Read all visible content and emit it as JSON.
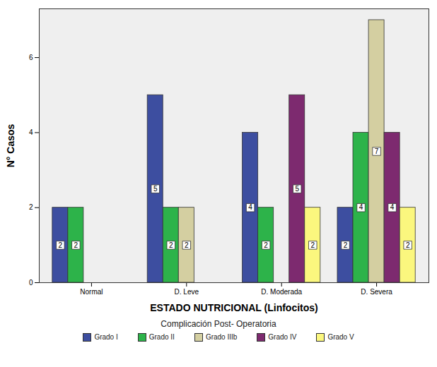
{
  "chart_data": {
    "type": "bar",
    "x_label": "ESTADO NUTRICIONAL (Linfocitos)",
    "y_label": "N° Casos",
    "legend_title": "Complicación Post- Operatoria",
    "categories": [
      "Normal",
      "D. Leve",
      "D. Moderada",
      "D. Severa"
    ],
    "series": [
      {
        "name": "Grado I",
        "color": "#3d4ea0",
        "values": [
          2,
          5,
          4,
          2
        ]
      },
      {
        "name": "Grado II",
        "color": "#2db34a",
        "values": [
          2,
          2,
          2,
          4
        ]
      },
      {
        "name": "Grado IIIb",
        "color": "#d4cfa1",
        "values": [
          null,
          2,
          null,
          7
        ]
      },
      {
        "name": "Grado IV",
        "color": "#7d2a6f",
        "values": [
          null,
          null,
          5,
          4
        ]
      },
      {
        "name": "Grado V",
        "color": "#fbf77e",
        "values": [
          null,
          null,
          2,
          2
        ]
      }
    ],
    "ylim": [
      0,
      7.3
    ],
    "yticks": [
      0,
      2,
      4,
      6
    ],
    "grid": false,
    "legend": "bottom",
    "data_labels": true
  }
}
